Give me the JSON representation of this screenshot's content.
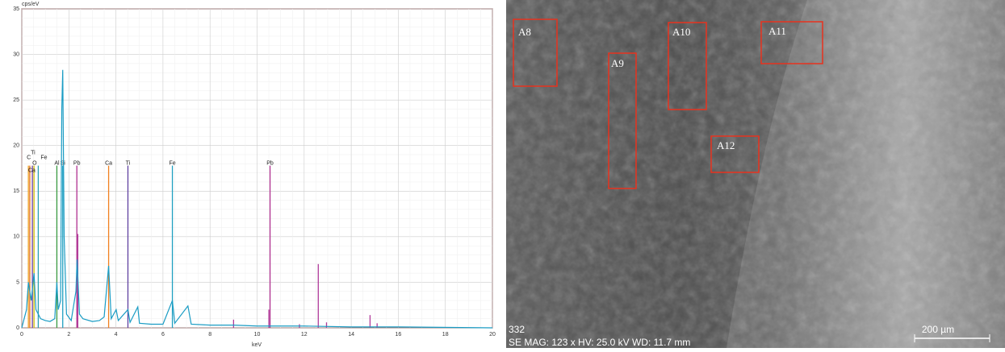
{
  "chart_data": {
    "type": "line",
    "x_label": "keV",
    "y_label": "cps/eV",
    "xlim": [
      0,
      20
    ],
    "xticks": [
      0,
      2,
      4,
      6,
      8,
      10,
      12,
      14,
      16,
      18,
      20
    ],
    "ylim": [
      0,
      35
    ],
    "yticks": [
      0,
      5,
      10,
      15,
      20,
      25,
      30,
      35
    ],
    "grid": true,
    "color": "#1a9cc4",
    "x": [
      0,
      0.1,
      0.2,
      0.28,
      0.4,
      0.52,
      0.6,
      0.8,
      1.0,
      1.2,
      1.4,
      1.49,
      1.55,
      1.65,
      1.7,
      1.74,
      1.8,
      1.9,
      2.1,
      2.3,
      2.35,
      2.45,
      2.6,
      3.0,
      3.3,
      3.5,
      3.69,
      3.8,
      4.01,
      4.1,
      4.51,
      4.6,
      4.93,
      5.0,
      5.5,
      6.0,
      6.4,
      6.5,
      7.06,
      7.2,
      8,
      9,
      10,
      11,
      12,
      14,
      16,
      20
    ],
    "values": [
      0,
      1,
      2,
      5,
      3,
      6,
      2,
      1,
      0.8,
      0.7,
      1,
      5,
      2,
      3,
      24,
      28.3,
      10,
      1.5,
      0.8,
      4,
      7.5,
      1.5,
      1,
      0.7,
      0.8,
      1.2,
      6.8,
      1,
      2,
      0.8,
      2,
      0.6,
      2.3,
      0.5,
      0.4,
      0.4,
      3,
      0.5,
      2.4,
      0.4,
      0.3,
      0.3,
      0.2,
      0.2,
      0.2,
      0.1,
      0.1,
      0
    ],
    "peaks": {
      "color": "#b03a9a",
      "x": [
        2.38,
        9.0,
        10.5,
        11.8,
        12.6,
        12.95,
        14.8,
        15.1
      ],
      "values": [
        10.3,
        0.9,
        2,
        0.4,
        7,
        0.6,
        1.4,
        0.5
      ]
    },
    "markers": [
      {
        "label": "Ti",
        "x": 0.45,
        "height": 17.8,
        "color": "#6a3fa0"
      },
      {
        "label": "C",
        "x": 0.28,
        "height": 17.8,
        "color": "#f0a020"
      },
      {
        "label": "Fe",
        "x": 0.7,
        "height": 17.8,
        "color": "#2a9fb0"
      },
      {
        "label": "O",
        "x": 0.52,
        "height": 17.8,
        "color": "#d4c000"
      },
      {
        "label": "Ca",
        "x": 0.34,
        "height": 17.8,
        "color": "#e07020"
      },
      {
        "label": "Al",
        "x": 1.49,
        "height": 17.8,
        "color": "#3a9a40"
      },
      {
        "label": "Si",
        "x": 1.74,
        "height": 17.8,
        "color": "#20a0c0"
      },
      {
        "label": "Pb",
        "x": 2.34,
        "height": 17.8,
        "color": "#b03090"
      },
      {
        "label": "Ca",
        "x": 3.69,
        "height": 17.8,
        "color": "#f08020"
      },
      {
        "label": "Ti",
        "x": 4.51,
        "height": 17.8,
        "color": "#6040a0"
      },
      {
        "label": "Fe",
        "x": 6.4,
        "height": 17.8,
        "color": "#20a0c0"
      },
      {
        "label": "Pb",
        "x": 10.55,
        "height": 17.8,
        "color": "#b03090"
      }
    ]
  },
  "image": {
    "regions": [
      "A8",
      "A9",
      "A10",
      "A11",
      "A12"
    ],
    "frame_id": "332",
    "info": "SE  MAG: 123 x  HV: 25.0 kV  WD: 11.7 mm",
    "scale_bar": "200 µm"
  }
}
